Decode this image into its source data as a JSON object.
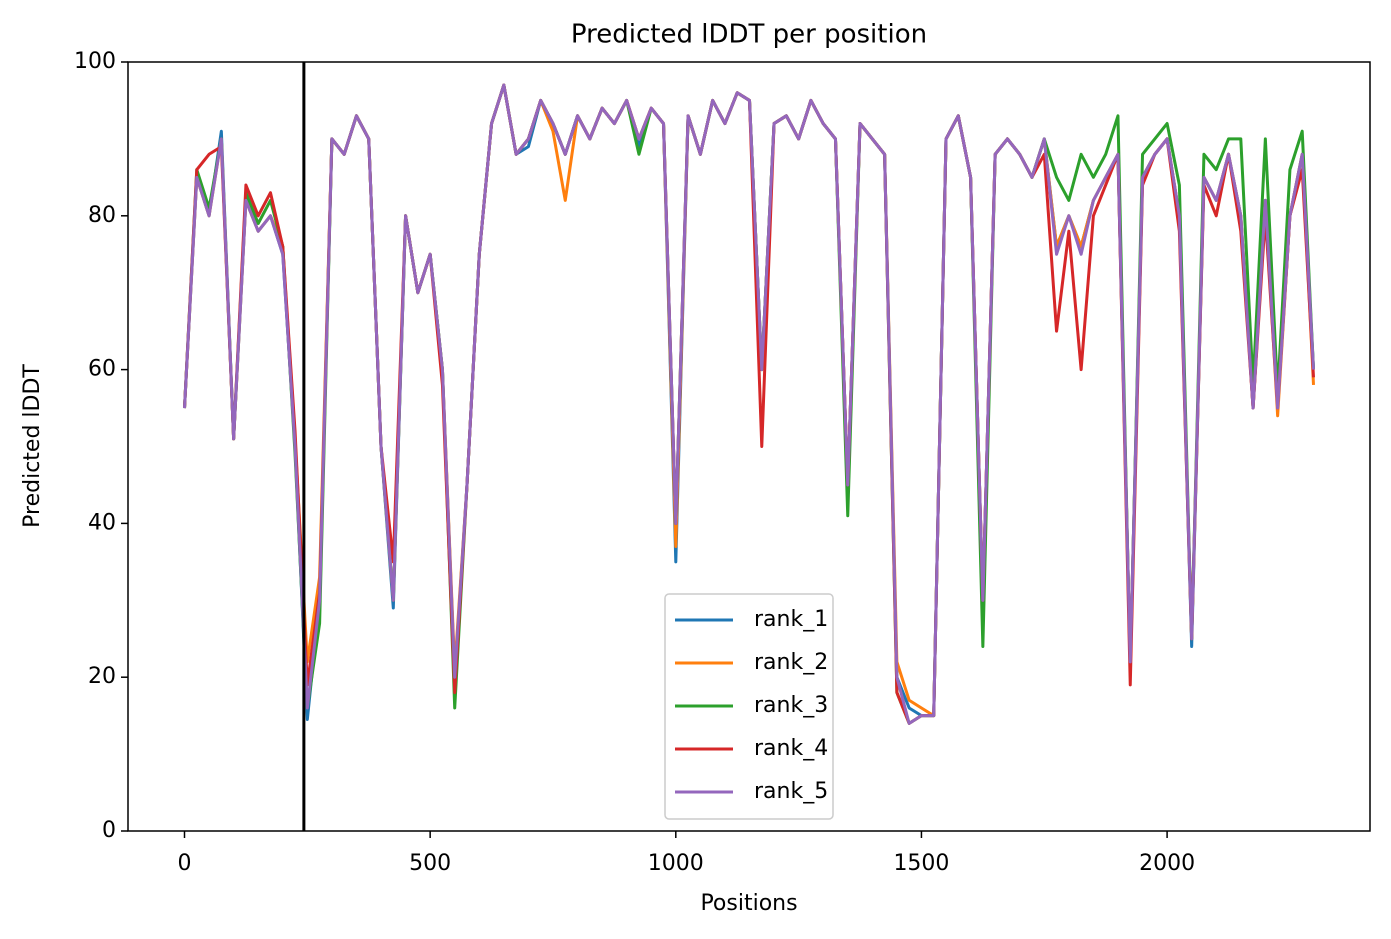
{
  "chart_data": {
    "type": "line",
    "title": "Predicted lDDT per position",
    "x_label": "Positions",
    "y_label": "Predicted lDDT",
    "x": [
      0,
      25,
      50,
      75,
      100,
      125,
      150,
      175,
      200,
      225,
      250,
      275,
      300,
      325,
      350,
      375,
      400,
      425,
      450,
      475,
      500,
      525,
      550,
      575,
      600,
      625,
      650,
      675,
      700,
      725,
      750,
      775,
      800,
      825,
      850,
      875,
      900,
      925,
      950,
      975,
      1000,
      1025,
      1050,
      1075,
      1100,
      1125,
      1150,
      1175,
      1200,
      1225,
      1250,
      1275,
      1300,
      1325,
      1350,
      1375,
      1400,
      1425,
      1450,
      1475,
      1500,
      1525,
      1550,
      1575,
      1600,
      1625,
      1650,
      1675,
      1700,
      1725,
      1750,
      1775,
      1800,
      1825,
      1850,
      1875,
      1900,
      1925,
      1950,
      1975,
      2000,
      2025,
      2050,
      2075,
      2100,
      2125,
      2150,
      2175,
      2200,
      2225,
      2250,
      2275,
      2298
    ],
    "series": [
      {
        "name": "rank_1",
        "color": "#1f77b4",
        "values": [
          55,
          85,
          80,
          91,
          51,
          82,
          78,
          80,
          75,
          50,
          14.5,
          30,
          90,
          88,
          93,
          90,
          50,
          29,
          80,
          70,
          75,
          60,
          20,
          45,
          75,
          92,
          97,
          88,
          89,
          95,
          92,
          88,
          93,
          90,
          94,
          92,
          95,
          89,
          94,
          92,
          35,
          93,
          88,
          95,
          92,
          96,
          95,
          60,
          92,
          93,
          90,
          95,
          92,
          90,
          45,
          92,
          90,
          88,
          20,
          16,
          15,
          15,
          90,
          93,
          85,
          30,
          88,
          90,
          88,
          85,
          90,
          76,
          80,
          76,
          82,
          85,
          88,
          22,
          85,
          88,
          90,
          80,
          24,
          85,
          82,
          88,
          80,
          55,
          82,
          55,
          80,
          88,
          60
        ]
      },
      {
        "name": "rank_2",
        "color": "#ff7f0e",
        "values": [
          55,
          85,
          80,
          90,
          51,
          82,
          78,
          80,
          76,
          51,
          22,
          33,
          90,
          88,
          93,
          90,
          50,
          30,
          80,
          70,
          75,
          60,
          21,
          45,
          75,
          92,
          97,
          88,
          90,
          95,
          91,
          82,
          93,
          90,
          94,
          92,
          95,
          90,
          94,
          92,
          37,
          93,
          88,
          95,
          92,
          96,
          95,
          60,
          92,
          93,
          90,
          95,
          92,
          90,
          45,
          92,
          90,
          88,
          22,
          17,
          16,
          15,
          90,
          93,
          85,
          30,
          88,
          90,
          88,
          85,
          90,
          76,
          80,
          76,
          82,
          85,
          88,
          22,
          85,
          88,
          90,
          80,
          25,
          85,
          82,
          88,
          80,
          55,
          82,
          54,
          80,
          88,
          58
        ]
      },
      {
        "name": "rank_3",
        "color": "#2ca02c",
        "values": [
          55,
          86,
          81,
          90,
          51,
          83,
          79,
          82,
          76,
          49,
          16,
          27,
          90,
          88,
          93,
          90,
          50,
          30,
          80,
          70,
          75,
          60,
          16,
          45,
          75,
          92,
          97,
          88,
          90,
          95,
          92,
          88,
          93,
          90,
          94,
          92,
          95,
          88,
          94,
          92,
          40,
          93,
          88,
          95,
          92,
          96,
          95,
          60,
          92,
          93,
          90,
          95,
          92,
          90,
          41,
          92,
          90,
          88,
          18,
          14,
          15,
          15,
          90,
          93,
          85,
          24,
          88,
          90,
          88,
          85,
          90,
          85,
          82,
          88,
          85,
          88,
          93,
          21,
          88,
          90,
          92,
          84,
          25,
          88,
          86,
          90,
          90,
          58,
          90,
          57,
          86,
          91,
          60
        ]
      },
      {
        "name": "rank_4",
        "color": "#d62728",
        "values": [
          55,
          86,
          88,
          89,
          51,
          84,
          80,
          83,
          76,
          52,
          19,
          31,
          90,
          88,
          93,
          90,
          50,
          35,
          80,
          70,
          75,
          58,
          18,
          45,
          75,
          92,
          97,
          88,
          90,
          95,
          92,
          88,
          93,
          90,
          94,
          92,
          95,
          90,
          94,
          92,
          40,
          93,
          88,
          95,
          92,
          96,
          95,
          50,
          92,
          93,
          90,
          95,
          92,
          90,
          45,
          92,
          90,
          88,
          18,
          14,
          15,
          15,
          90,
          93,
          85,
          30,
          88,
          90,
          88,
          85,
          88,
          65,
          78,
          60,
          80,
          84,
          88,
          19,
          84,
          88,
          90,
          78,
          25,
          84,
          80,
          88,
          78,
          55,
          80,
          55,
          80,
          86,
          59
        ]
      },
      {
        "name": "rank_5",
        "color": "#9467bd",
        "values": [
          55,
          85,
          80,
          90,
          51,
          82,
          78,
          80,
          75,
          50,
          16,
          30,
          90,
          88,
          93,
          90,
          50,
          30,
          80,
          70,
          75,
          60,
          20,
          45,
          75,
          92,
          97,
          88,
          90,
          95,
          92,
          88,
          93,
          90,
          94,
          92,
          95,
          90,
          94,
          92,
          40,
          93,
          88,
          95,
          92,
          96,
          95,
          60,
          92,
          93,
          90,
          95,
          92,
          90,
          45,
          92,
          90,
          88,
          20,
          14,
          15,
          15,
          90,
          93,
          85,
          30,
          88,
          90,
          88,
          85,
          90,
          75,
          80,
          75,
          82,
          85,
          88,
          22,
          85,
          88,
          90,
          80,
          25,
          85,
          82,
          88,
          80,
          55,
          82,
          55,
          80,
          88,
          60
        ]
      }
    ],
    "vlines": [
      243
    ],
    "xlim": [
      -115,
      2413
    ],
    "xticks": [
      0,
      500,
      1000,
      1500,
      2000
    ],
    "ylim": [
      0,
      100
    ],
    "yticks": [
      0,
      20,
      40,
      60,
      80,
      100
    ],
    "legend": "lower center"
  }
}
